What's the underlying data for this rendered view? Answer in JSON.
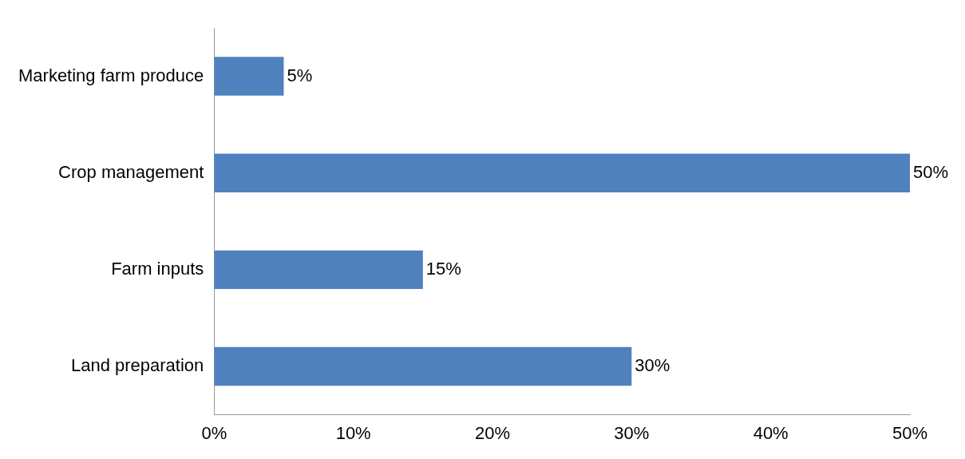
{
  "chart_data": {
    "type": "bar",
    "orientation": "horizontal",
    "categories": [
      "Marketing farm produce",
      "Crop management",
      "Farm inputs",
      "Land preparation"
    ],
    "values": [
      5,
      50,
      15,
      30
    ],
    "value_labels": [
      "5%",
      "50%",
      "15%",
      "30%"
    ],
    "color": "#4f81bd",
    "xlim": [
      0,
      50
    ],
    "xticks": [
      {
        "value": 0,
        "label": "0%"
      },
      {
        "value": 10,
        "label": "10%"
      },
      {
        "value": 20,
        "label": "20%"
      },
      {
        "value": 30,
        "label": "30%"
      },
      {
        "value": 40,
        "label": "40%"
      },
      {
        "value": 50,
        "label": "50%"
      }
    ],
    "grid": false,
    "legend": false
  }
}
